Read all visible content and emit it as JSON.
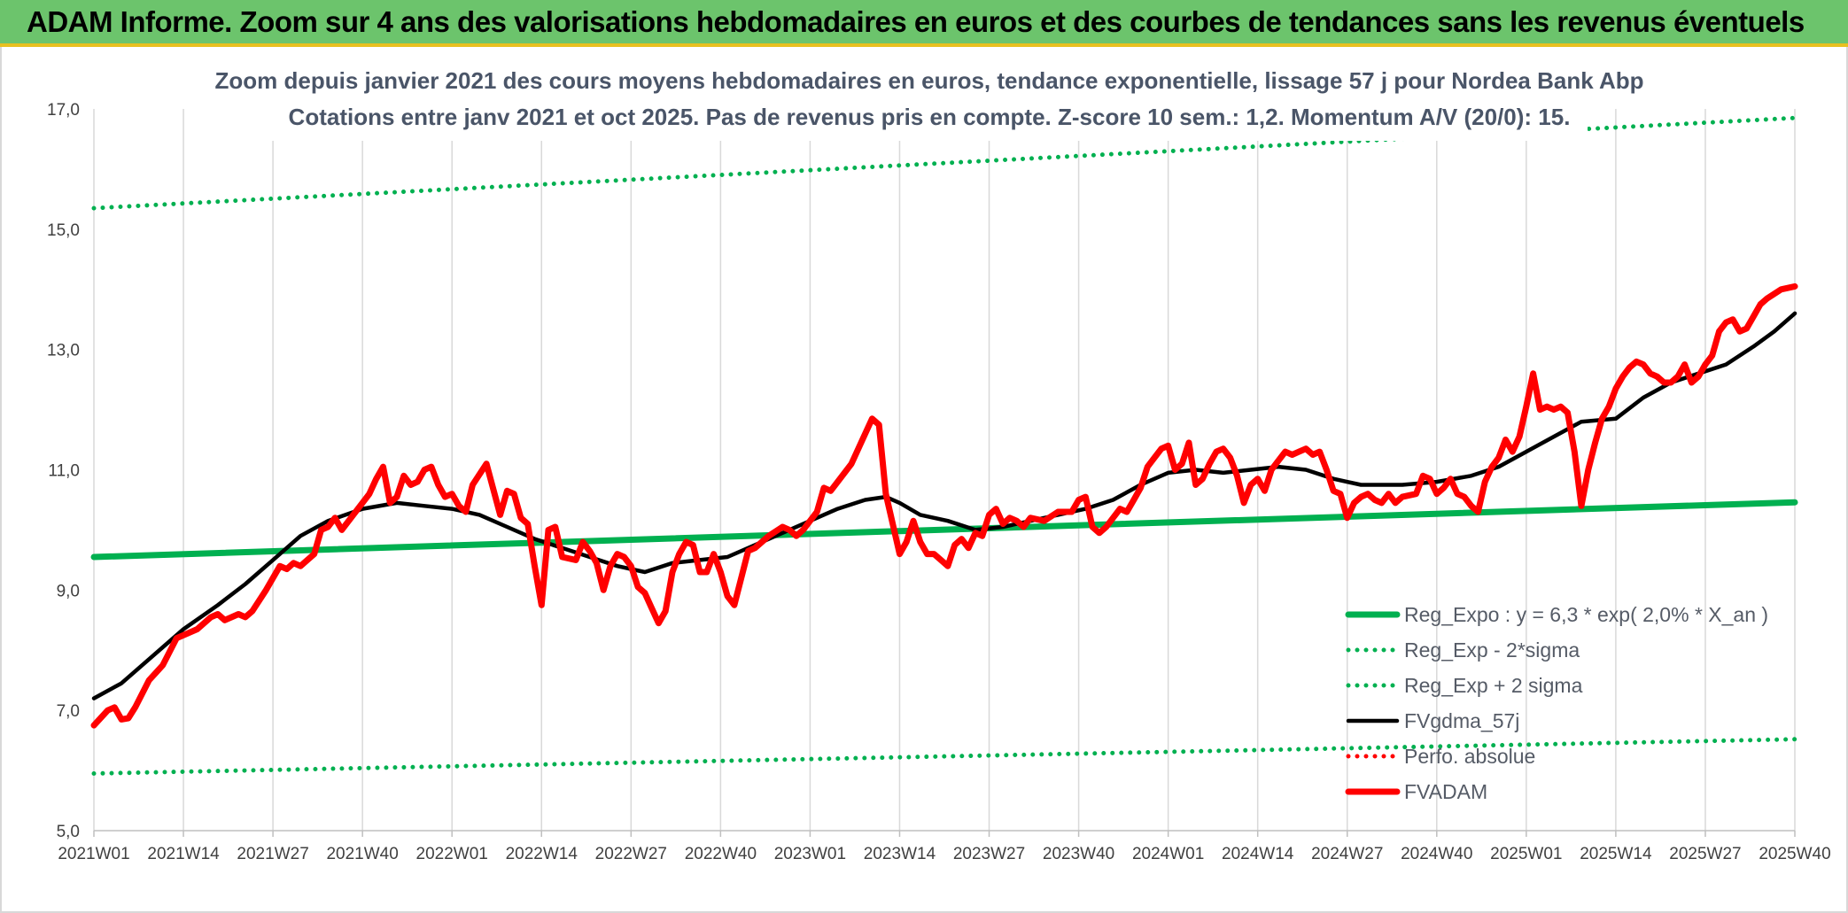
{
  "header": {
    "title": "ADAM Informe. Zoom sur 4 ans des valorisations hebdomadaires en euros et des courbes de tendances sans les revenus éventuels"
  },
  "chart_data": {
    "type": "line",
    "title": "Zoom depuis janvier 2021 des cours moyens hebdomadaires en euros, tendance exponentielle, lissage 57 j pour Nordea Bank Abp",
    "subtitle": "Cotations entre janv 2021 et oct 2025. Pas de revenus pris en compte. Z-score 10 sem.: 1,2. Momentum A/V (20/0): 15.",
    "ylim": [
      5,
      17
    ],
    "yticks": [
      5,
      7,
      9,
      11,
      13,
      15,
      17
    ],
    "ytick_labels": [
      "5,0",
      "7,0",
      "9,0",
      "11,0",
      "13,0",
      "15,0",
      "17,0"
    ],
    "xticks": [
      0,
      13,
      26,
      39,
      52,
      65,
      78,
      91,
      104,
      117,
      130,
      143,
      156,
      169,
      182,
      195,
      208,
      221,
      234,
      247
    ],
    "xtick_labels": [
      "2021W01",
      "2021W14",
      "2021W27",
      "2021W40",
      "2022W01",
      "2022W14",
      "2022W27",
      "2022W40",
      "2023W01",
      "2023W14",
      "2023W27",
      "2023W40",
      "2024W01",
      "2024W14",
      "2024W27",
      "2024W40",
      "2025W01",
      "2025W14",
      "2025W27",
      "2025W40"
    ],
    "x_max": 247,
    "grid": "vertical",
    "legend_position": "bottom-right",
    "series": [
      {
        "name": "Reg_Expo : y = 6,3 * exp( 2,0% *  X_an )",
        "style": "thick",
        "color": "#00b050",
        "points": [
          [
            0,
            9.55
          ],
          [
            247,
            10.46
          ]
        ]
      },
      {
        "name": "Reg_Exp - 2*sigma",
        "style": "dotted",
        "color": "#00b050",
        "points": [
          [
            0,
            5.95
          ],
          [
            247,
            6.52
          ]
        ]
      },
      {
        "name": "Reg_Exp + 2 sigma",
        "style": "dotted",
        "color": "#00b050",
        "points": [
          [
            0,
            15.35
          ],
          [
            247,
            16.85
          ]
        ]
      },
      {
        "name": "FVgdma_57j",
        "style": "solid",
        "color": "#000000",
        "points": [
          [
            0,
            7.2
          ],
          [
            4,
            7.45
          ],
          [
            8,
            7.85
          ],
          [
            13,
            8.35
          ],
          [
            18,
            8.75
          ],
          [
            22,
            9.1
          ],
          [
            26,
            9.5
          ],
          [
            30,
            9.9
          ],
          [
            34,
            10.15
          ],
          [
            39,
            10.35
          ],
          [
            44,
            10.45
          ],
          [
            48,
            10.4
          ],
          [
            52,
            10.35
          ],
          [
            56,
            10.25
          ],
          [
            60,
            10.05
          ],
          [
            64,
            9.85
          ],
          [
            68,
            9.7
          ],
          [
            72,
            9.55
          ],
          [
            76,
            9.4
          ],
          [
            80,
            9.3
          ],
          [
            84,
            9.45
          ],
          [
            88,
            9.5
          ],
          [
            92,
            9.55
          ],
          [
            96,
            9.75
          ],
          [
            100,
            9.95
          ],
          [
            104,
            10.15
          ],
          [
            108,
            10.35
          ],
          [
            112,
            10.5
          ],
          [
            115,
            10.55
          ],
          [
            117,
            10.45
          ],
          [
            120,
            10.25
          ],
          [
            124,
            10.15
          ],
          [
            128,
            10.0
          ],
          [
            132,
            10.05
          ],
          [
            136,
            10.15
          ],
          [
            140,
            10.25
          ],
          [
            144,
            10.35
          ],
          [
            148,
            10.5
          ],
          [
            152,
            10.75
          ],
          [
            156,
            10.95
          ],
          [
            160,
            11.0
          ],
          [
            164,
            10.95
          ],
          [
            168,
            11.0
          ],
          [
            172,
            11.05
          ],
          [
            176,
            11.0
          ],
          [
            180,
            10.85
          ],
          [
            184,
            10.75
          ],
          [
            190,
            10.75
          ],
          [
            195,
            10.8
          ],
          [
            200,
            10.9
          ],
          [
            204,
            11.05
          ],
          [
            208,
            11.3
          ],
          [
            212,
            11.55
          ],
          [
            216,
            11.8
          ],
          [
            221,
            11.85
          ],
          [
            225,
            12.2
          ],
          [
            229,
            12.45
          ],
          [
            233,
            12.6
          ],
          [
            237,
            12.75
          ],
          [
            241,
            13.05
          ],
          [
            244,
            13.3
          ],
          [
            247,
            13.6
          ]
        ]
      },
      {
        "name": "Perfo. absolue",
        "style": "dotted",
        "color": "#ff0000",
        "points": []
      },
      {
        "name": "FVADAM",
        "style": "thick",
        "color": "#ff0000",
        "points": [
          [
            0,
            6.75
          ],
          [
            2,
            7.0
          ],
          [
            3,
            7.05
          ],
          [
            4,
            6.85
          ],
          [
            5,
            6.87
          ],
          [
            6,
            7.05
          ],
          [
            8,
            7.5
          ],
          [
            10,
            7.75
          ],
          [
            12,
            8.2
          ],
          [
            14,
            8.3
          ],
          [
            15,
            8.35
          ],
          [
            17,
            8.55
          ],
          [
            18,
            8.6
          ],
          [
            19,
            8.5
          ],
          [
            21,
            8.6
          ],
          [
            22,
            8.55
          ],
          [
            23,
            8.65
          ],
          [
            25,
            9.0
          ],
          [
            27,
            9.4
          ],
          [
            28,
            9.35
          ],
          [
            29,
            9.45
          ],
          [
            30,
            9.4
          ],
          [
            32,
            9.6
          ],
          [
            33,
            10.0
          ],
          [
            34,
            10.05
          ],
          [
            35,
            10.2
          ],
          [
            36,
            10.0
          ],
          [
            38,
            10.3
          ],
          [
            40,
            10.6
          ],
          [
            41,
            10.85
          ],
          [
            42,
            11.05
          ],
          [
            43,
            10.45
          ],
          [
            44,
            10.55
          ],
          [
            45,
            10.9
          ],
          [
            46,
            10.75
          ],
          [
            47,
            10.8
          ],
          [
            48,
            11.0
          ],
          [
            49,
            11.05
          ],
          [
            50,
            10.75
          ],
          [
            51,
            10.55
          ],
          [
            52,
            10.6
          ],
          [
            53,
            10.4
          ],
          [
            54,
            10.3
          ],
          [
            55,
            10.75
          ],
          [
            57,
            11.1
          ],
          [
            59,
            10.25
          ],
          [
            60,
            10.65
          ],
          [
            61,
            10.6
          ],
          [
            62,
            10.2
          ],
          [
            63,
            10.1
          ],
          [
            64,
            9.4
          ],
          [
            65,
            8.75
          ],
          [
            66,
            10.0
          ],
          [
            67,
            10.05
          ],
          [
            68,
            9.55
          ],
          [
            70,
            9.5
          ],
          [
            71,
            9.8
          ],
          [
            72,
            9.65
          ],
          [
            73,
            9.45
          ],
          [
            74,
            9.0
          ],
          [
            75,
            9.4
          ],
          [
            76,
            9.6
          ],
          [
            77,
            9.55
          ],
          [
            78,
            9.4
          ],
          [
            79,
            9.05
          ],
          [
            80,
            8.95
          ],
          [
            81,
            8.7
          ],
          [
            82,
            8.45
          ],
          [
            83,
            8.65
          ],
          [
            84,
            9.3
          ],
          [
            85,
            9.6
          ],
          [
            86,
            9.8
          ],
          [
            87,
            9.75
          ],
          [
            88,
            9.3
          ],
          [
            89,
            9.3
          ],
          [
            90,
            9.6
          ],
          [
            91,
            9.3
          ],
          [
            92,
            8.9
          ],
          [
            93,
            8.75
          ],
          [
            95,
            9.65
          ],
          [
            96,
            9.7
          ],
          [
            98,
            9.9
          ],
          [
            100,
            10.05
          ],
          [
            101,
            10.0
          ],
          [
            102,
            9.9
          ],
          [
            103,
            10.0
          ],
          [
            105,
            10.3
          ],
          [
            106,
            10.7
          ],
          [
            107,
            10.65
          ],
          [
            108,
            10.8
          ],
          [
            110,
            11.1
          ],
          [
            112,
            11.6
          ],
          [
            113,
            11.85
          ],
          [
            114,
            11.75
          ],
          [
            115,
            10.6
          ],
          [
            116,
            10.1
          ],
          [
            117,
            9.6
          ],
          [
            118,
            9.8
          ],
          [
            119,
            10.15
          ],
          [
            120,
            9.8
          ],
          [
            121,
            9.6
          ],
          [
            122,
            9.6
          ],
          [
            123,
            9.5
          ],
          [
            124,
            9.4
          ],
          [
            125,
            9.75
          ],
          [
            126,
            9.85
          ],
          [
            127,
            9.7
          ],
          [
            128,
            9.95
          ],
          [
            129,
            9.9
          ],
          [
            130,
            10.25
          ],
          [
            131,
            10.35
          ],
          [
            132,
            10.1
          ],
          [
            133,
            10.2
          ],
          [
            134,
            10.15
          ],
          [
            135,
            10.05
          ],
          [
            136,
            10.2
          ],
          [
            138,
            10.15
          ],
          [
            140,
            10.3
          ],
          [
            142,
            10.3
          ],
          [
            143,
            10.5
          ],
          [
            144,
            10.55
          ],
          [
            145,
            10.05
          ],
          [
            146,
            9.95
          ],
          [
            147,
            10.05
          ],
          [
            148,
            10.2
          ],
          [
            149,
            10.35
          ],
          [
            150,
            10.3
          ],
          [
            151,
            10.5
          ],
          [
            152,
            10.7
          ],
          [
            153,
            11.05
          ],
          [
            154,
            11.2
          ],
          [
            155,
            11.35
          ],
          [
            156,
            11.4
          ],
          [
            157,
            11.0
          ],
          [
            158,
            11.1
          ],
          [
            159,
            11.45
          ],
          [
            160,
            10.75
          ],
          [
            161,
            10.85
          ],
          [
            162,
            11.1
          ],
          [
            163,
            11.3
          ],
          [
            164,
            11.35
          ],
          [
            165,
            11.2
          ],
          [
            166,
            10.9
          ],
          [
            167,
            10.45
          ],
          [
            168,
            10.75
          ],
          [
            169,
            10.85
          ],
          [
            170,
            10.65
          ],
          [
            171,
            11.0
          ],
          [
            172,
            11.15
          ],
          [
            173,
            11.3
          ],
          [
            174,
            11.25
          ],
          [
            175,
            11.3
          ],
          [
            176,
            11.35
          ],
          [
            177,
            11.25
          ],
          [
            178,
            11.3
          ],
          [
            179,
            11.0
          ],
          [
            180,
            10.65
          ],
          [
            181,
            10.6
          ],
          [
            182,
            10.2
          ],
          [
            183,
            10.45
          ],
          [
            184,
            10.55
          ],
          [
            185,
            10.6
          ],
          [
            186,
            10.5
          ],
          [
            187,
            10.45
          ],
          [
            188,
            10.6
          ],
          [
            189,
            10.45
          ],
          [
            190,
            10.55
          ],
          [
            192,
            10.6
          ],
          [
            193,
            10.9
          ],
          [
            194,
            10.85
          ],
          [
            195,
            10.6
          ],
          [
            196,
            10.7
          ],
          [
            197,
            10.85
          ],
          [
            198,
            10.6
          ],
          [
            199,
            10.55
          ],
          [
            200,
            10.4
          ],
          [
            201,
            10.3
          ],
          [
            202,
            10.8
          ],
          [
            203,
            11.05
          ],
          [
            204,
            11.2
          ],
          [
            205,
            11.5
          ],
          [
            206,
            11.3
          ],
          [
            207,
            11.55
          ],
          [
            208,
            12.05
          ],
          [
            209,
            12.6
          ],
          [
            210,
            12.0
          ],
          [
            211,
            12.05
          ],
          [
            212,
            12.0
          ],
          [
            213,
            12.05
          ],
          [
            214,
            11.95
          ],
          [
            215,
            11.3
          ],
          [
            216,
            10.4
          ],
          [
            217,
            11.0
          ],
          [
            218,
            11.45
          ],
          [
            219,
            11.85
          ],
          [
            220,
            12.05
          ],
          [
            221,
            12.35
          ],
          [
            222,
            12.55
          ],
          [
            223,
            12.7
          ],
          [
            224,
            12.8
          ],
          [
            225,
            12.75
          ],
          [
            226,
            12.6
          ],
          [
            227,
            12.55
          ],
          [
            228,
            12.45
          ],
          [
            229,
            12.45
          ],
          [
            230,
            12.55
          ],
          [
            231,
            12.75
          ],
          [
            232,
            12.45
          ],
          [
            233,
            12.55
          ],
          [
            234,
            12.75
          ],
          [
            235,
            12.9
          ],
          [
            236,
            13.3
          ],
          [
            237,
            13.45
          ],
          [
            238,
            13.5
          ],
          [
            239,
            13.3
          ],
          [
            240,
            13.35
          ],
          [
            241,
            13.55
          ],
          [
            242,
            13.75
          ],
          [
            243,
            13.85
          ],
          [
            245,
            14.0
          ],
          [
            247,
            14.05
          ]
        ]
      }
    ]
  }
}
